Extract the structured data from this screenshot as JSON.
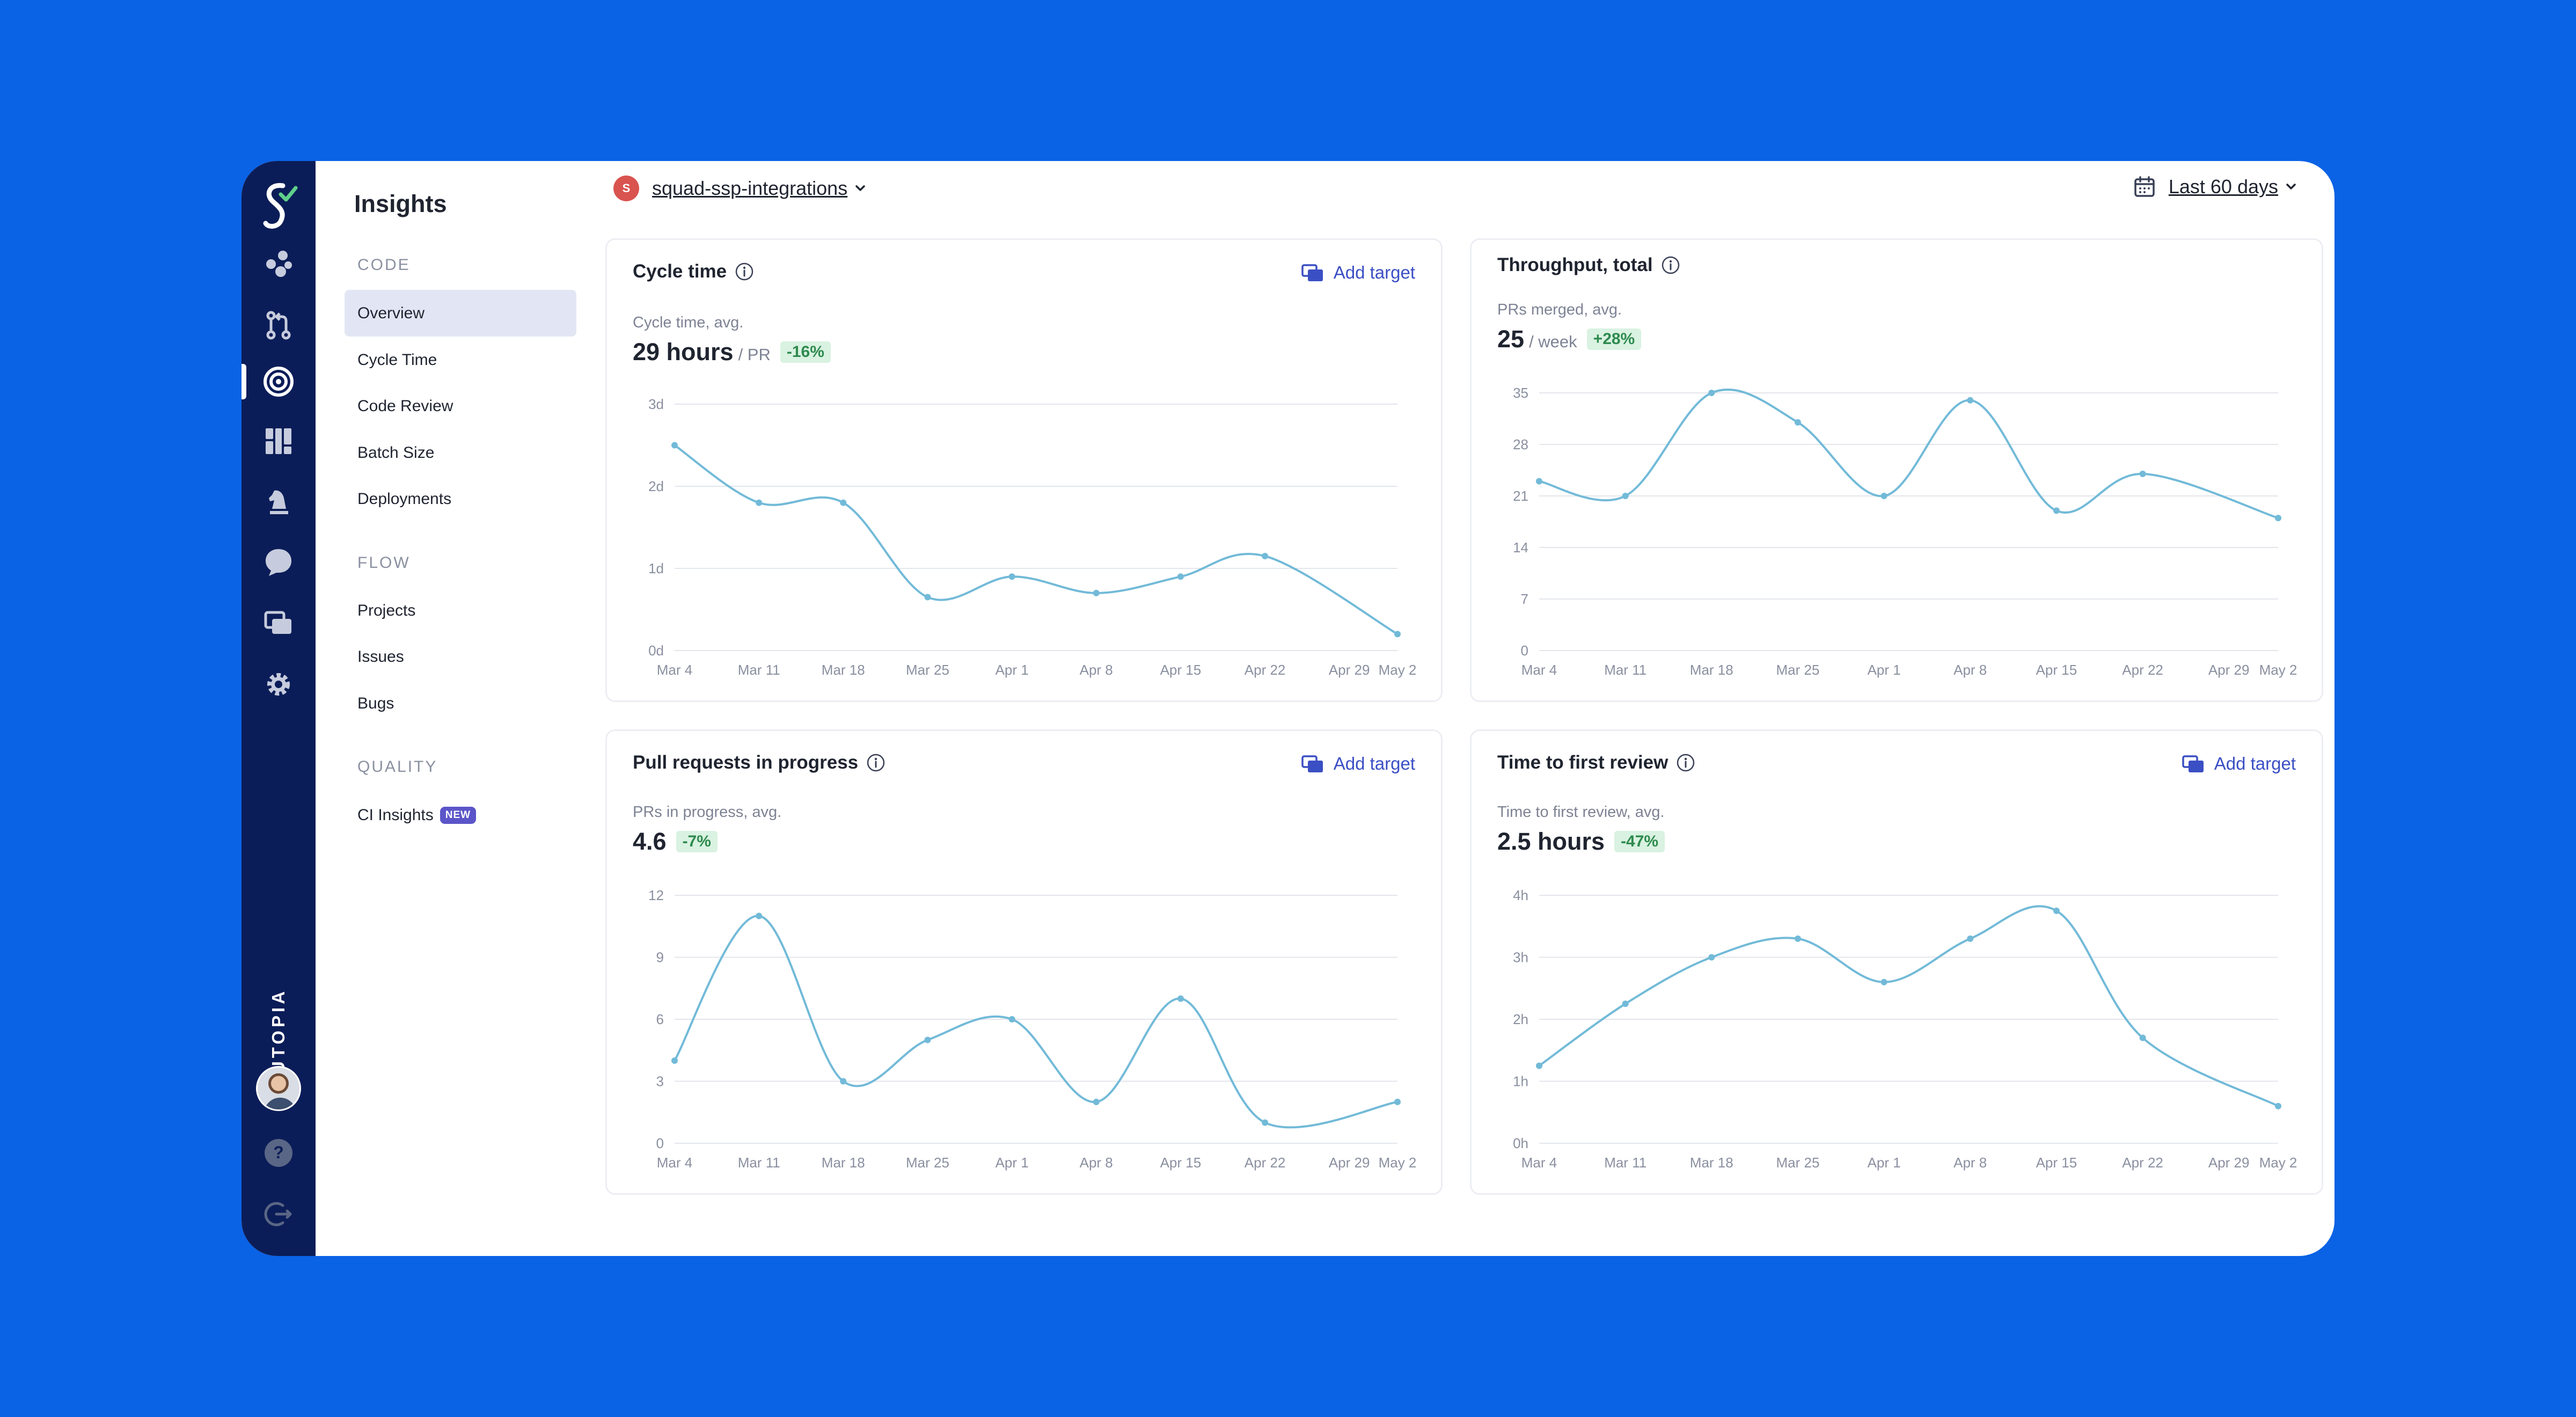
{
  "app": {
    "brand": "SKUTOPIA"
  },
  "rail": {
    "icons": [
      "skutopia-logo-icon",
      "shapes-icon",
      "pull-request-icon",
      "insights-target-icon",
      "dashboard-icon",
      "chess-knight-icon",
      "chat-bubble-icon",
      "add-target-icon",
      "settings-gear-icon",
      "help-icon",
      "logout-icon"
    ]
  },
  "sidebar": {
    "title": "Insights",
    "sections": [
      {
        "label": "CODE",
        "items": [
          "Overview",
          "Cycle Time",
          "Code Review",
          "Batch Size",
          "Deployments"
        ]
      },
      {
        "label": "FLOW",
        "items": [
          "Projects",
          "Issues",
          "Bugs"
        ]
      },
      {
        "label": "QUALITY",
        "items": [
          "CI Insights"
        ]
      }
    ],
    "active_item": "Overview",
    "new_badge": "NEW"
  },
  "header": {
    "team_initial": "S",
    "team_name": "squad-ssp-integrations",
    "date_range": "Last 60 days"
  },
  "colors": {
    "background": "#0a62e5",
    "rail": "#0b1d58",
    "accent": "#3b4fc4",
    "line": "#72bad8",
    "delta_bg": "#d9f2e1",
    "delta_text": "#2e8a4e"
  },
  "cards": [
    {
      "title": "Cycle time",
      "add_target": "Add target",
      "metric_label": "Cycle time, avg.",
      "metric_value": "29 hours",
      "metric_unit": "/ PR",
      "metric_delta": "-16%"
    },
    {
      "title": "Throughput, total",
      "add_target": "",
      "metric_label": "PRs merged, avg.",
      "metric_value": "25",
      "metric_unit": "/ week",
      "metric_delta": "+28%"
    },
    {
      "title": "Pull requests in progress",
      "add_target": "Add target",
      "metric_label": "PRs in progress, avg.",
      "metric_value": "4.6",
      "metric_unit": "",
      "metric_delta": "-7%"
    },
    {
      "title": "Time to first review",
      "add_target": "Add target",
      "metric_label": "Time to first review, avg.",
      "metric_value": "2.5 hours",
      "metric_unit": "",
      "metric_delta": "-47%"
    }
  ],
  "chart_data": [
    {
      "type": "line",
      "categories": [
        "Mar 4",
        "Mar 11",
        "Mar 18",
        "Mar 25",
        "Apr 1",
        "Apr 8",
        "Apr 15",
        "Apr 22",
        "Apr 29",
        "May 2"
      ],
      "values": [
        2.5,
        1.8,
        1.8,
        0.65,
        0.9,
        0.7,
        0.9,
        1.15,
        null,
        0.2
      ],
      "yticks": [
        "0d",
        "1d",
        "2d",
        "3d"
      ],
      "ylim": [
        0,
        3
      ],
      "grid": true
    },
    {
      "type": "line",
      "categories": [
        "Mar 4",
        "Mar 11",
        "Mar 18",
        "Mar 25",
        "Apr 1",
        "Apr 8",
        "Apr 15",
        "Apr 22",
        "Apr 29",
        "May 2"
      ],
      "values": [
        23,
        21,
        35,
        31,
        21,
        34,
        19,
        24,
        null,
        18
      ],
      "yticks": [
        "0",
        "7",
        "14",
        "21",
        "28",
        "35"
      ],
      "ylim": [
        0,
        35
      ],
      "grid": true
    },
    {
      "type": "line",
      "categories": [
        "Mar 4",
        "Mar 11",
        "Mar 18",
        "Mar 25",
        "Apr 1",
        "Apr 8",
        "Apr 15",
        "Apr 22",
        "Apr 29",
        "May 2"
      ],
      "values": [
        4,
        11,
        3,
        5,
        6,
        2,
        7,
        1,
        null,
        2
      ],
      "yticks": [
        "0",
        "3",
        "6",
        "9",
        "12"
      ],
      "ylim": [
        0,
        12
      ],
      "grid": true
    },
    {
      "type": "line",
      "categories": [
        "Mar 4",
        "Mar 11",
        "Mar 18",
        "Mar 25",
        "Apr 1",
        "Apr 8",
        "Apr 15",
        "Apr 22",
        "Apr 29",
        "May 2"
      ],
      "values": [
        1.25,
        2.25,
        3.0,
        3.3,
        2.6,
        3.3,
        3.75,
        1.7,
        null,
        0.6
      ],
      "yticks": [
        "0h",
        "1h",
        "2h",
        "3h",
        "4h"
      ],
      "ylim": [
        0,
        4
      ],
      "grid": true
    }
  ]
}
